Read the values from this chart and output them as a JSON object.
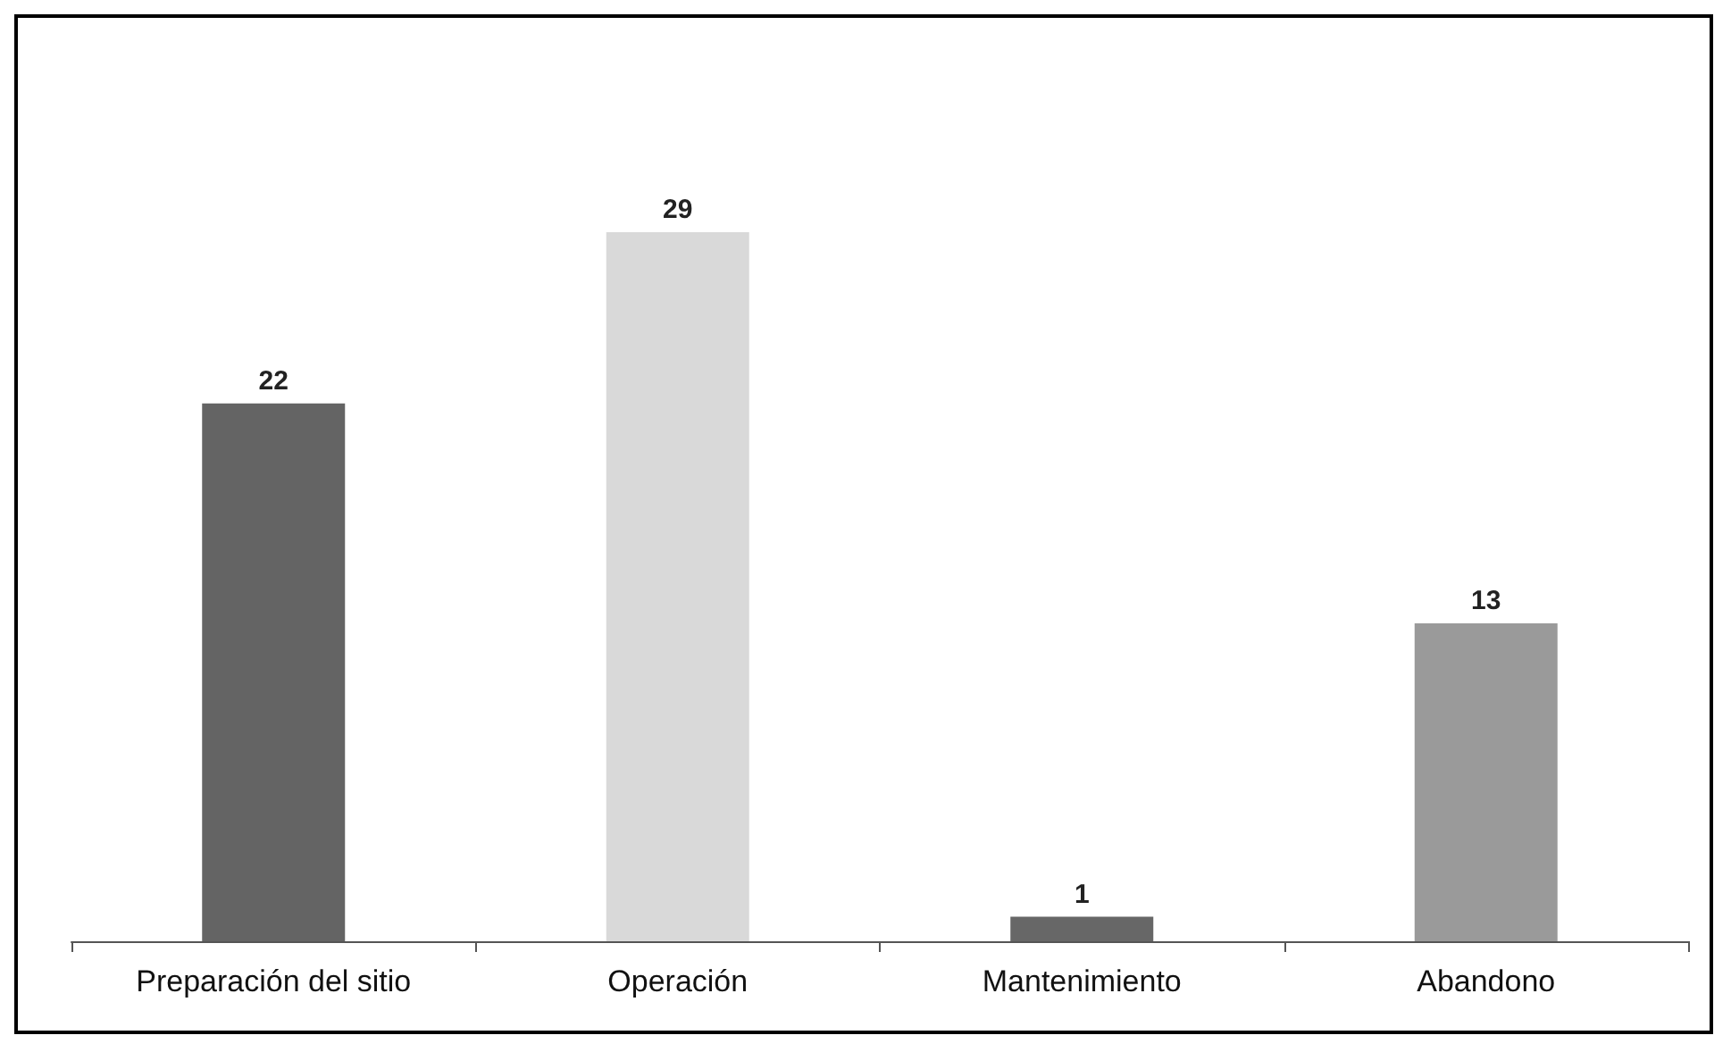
{
  "chart_data": {
    "type": "bar",
    "categories": [
      "Preparación del sitio",
      "Operación",
      "Mantenimiento",
      "Abandono"
    ],
    "values": [
      22,
      29,
      1,
      13
    ],
    "colors": [
      "#646464",
      "#d9d9d9",
      "#676767",
      "#9a9a9a"
    ],
    "data_labels": true
  }
}
